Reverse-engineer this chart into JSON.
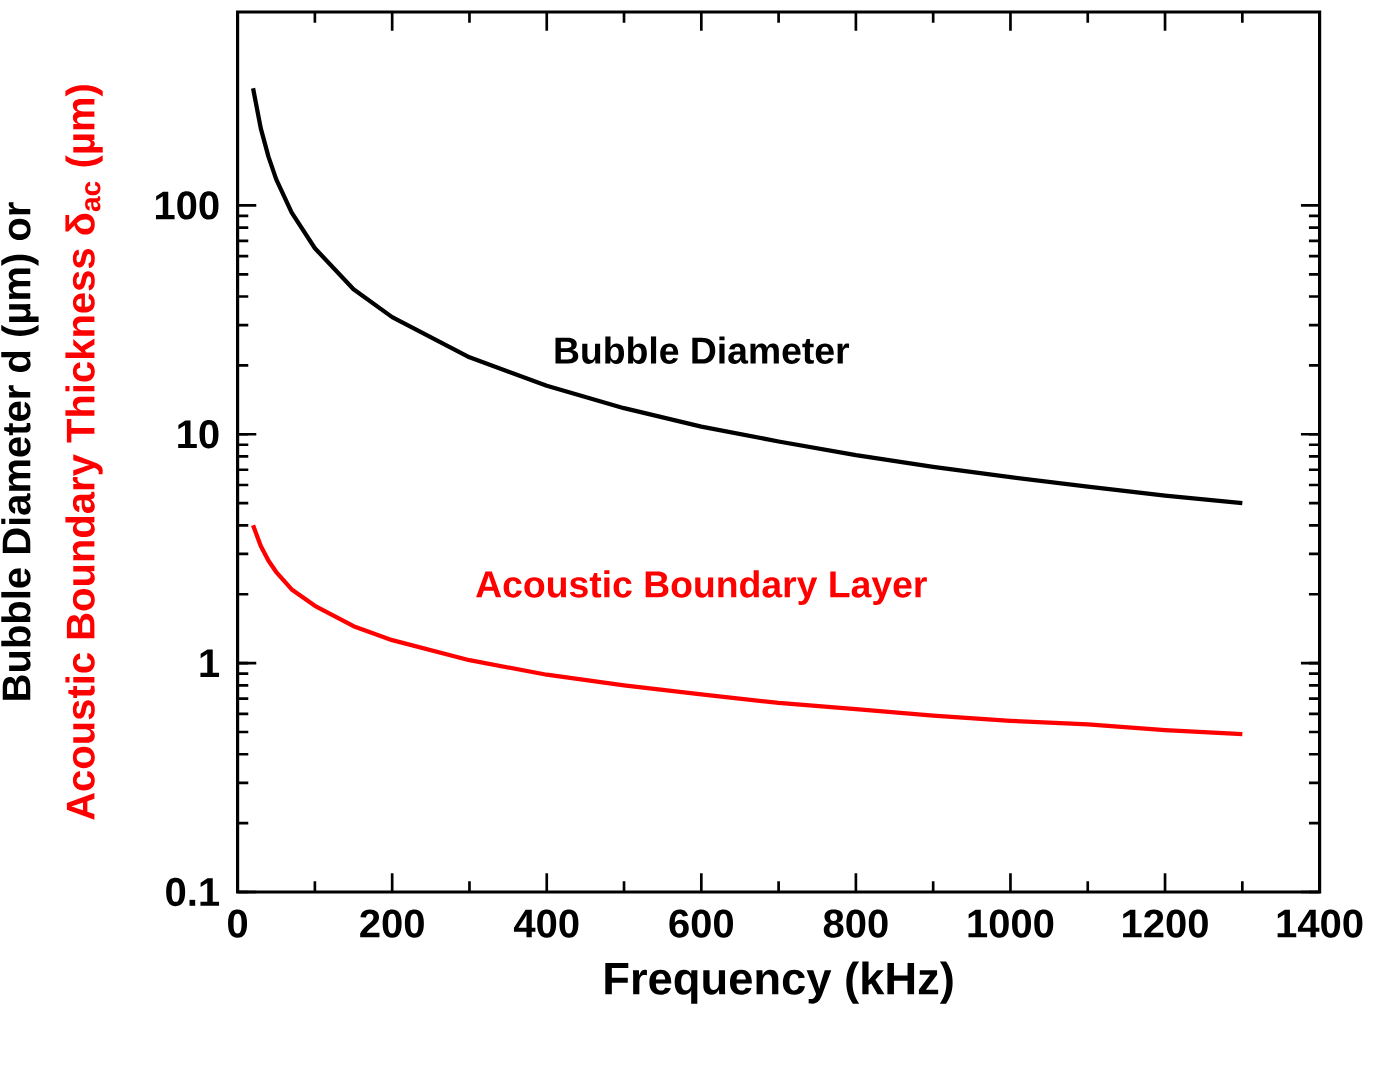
{
  "chart_data": {
    "type": "line",
    "xlabel": "Frequency (kHz)",
    "ylabel": "Bubble Diameter d (µm) or",
    "annotations": [
      "Acoustic Boundary Thickness δ$_{ac}$ (µm)"
    ],
    "log": "y",
    "xlim": [
      0,
      1400
    ],
    "xticks": [
      0,
      200,
      400,
      600,
      800,
      1000,
      1200,
      1400
    ],
    "ylim": [
      0.1,
      700
    ],
    "yticks": [
      0.1,
      1,
      10,
      100
    ],
    "marker": "none",
    "line_style": "solid",
    "grid": false,
    "x": [
      20,
      30,
      40,
      50,
      70,
      100,
      150,
      200,
      300,
      400,
      500,
      600,
      700,
      800,
      900,
      1000,
      1100,
      1200,
      1300
    ],
    "series": [
      {
        "name": "Bubble Diameter",
        "color": "#000000",
        "values": [
          325,
          217,
          163,
          130,
          93,
          65,
          43,
          32.5,
          21.7,
          16.3,
          13,
          10.8,
          9.3,
          8.1,
          7.2,
          6.5,
          5.9,
          5.4,
          5.0
        ]
      },
      {
        "name": "Acoustic Boundary Layer",
        "color": "#ff0000",
        "values": [
          4.0,
          3.25,
          2.8,
          2.5,
          2.1,
          1.78,
          1.45,
          1.26,
          1.03,
          0.89,
          0.8,
          0.73,
          0.67,
          0.63,
          0.59,
          0.56,
          0.54,
          0.51,
          0.49
        ]
      }
    ]
  }
}
